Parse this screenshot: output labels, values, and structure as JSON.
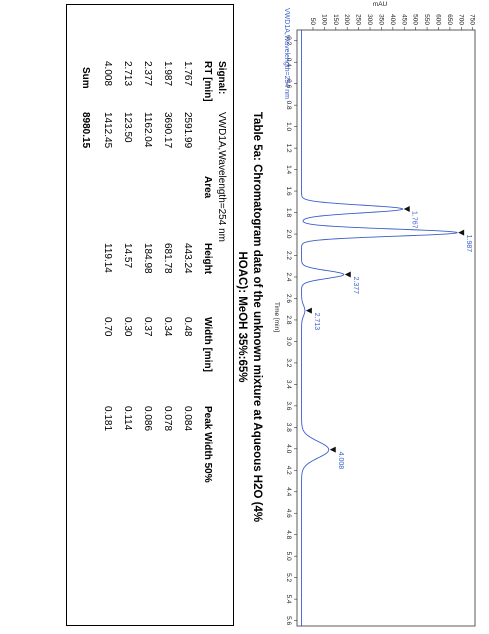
{
  "chart": {
    "y_axis_title": "mAU",
    "x_axis_title": "Time [min]",
    "legend": "VWD1A,Wavelength=254 nm",
    "x_ticks": [
      "0.2",
      "0.4",
      "0.6",
      "0.8",
      "1.0",
      "1.2",
      "1.4",
      "1.6",
      "1.8",
      "2.0",
      "2.2",
      "2.4",
      "2.6",
      "2.8",
      "3.0",
      "3.2",
      "3.4",
      "3.6",
      "3.8",
      "4.0",
      "4.2",
      "4.4",
      "4.6",
      "4.8",
      "5.0",
      "5.2",
      "5.4",
      "5.6"
    ],
    "y_ticks": [
      "50",
      "100",
      "150",
      "200",
      "250",
      "300",
      "350",
      "400",
      "450",
      "500",
      "550",
      "600",
      "650",
      "700",
      "750"
    ],
    "line_color": "#3a5fcd"
  },
  "chart_data": {
    "type": "line",
    "title": "",
    "xlabel": "Time [min]",
    "ylabel": "mAU",
    "xlim": [
      0.2,
      5.6
    ],
    "ylim": [
      0,
      750
    ],
    "series": [
      {
        "name": "VWD1A,Wavelength=254 nm"
      }
    ],
    "peaks": [
      {
        "label": "1.767",
        "rt": 1.767,
        "height": 443.24,
        "width50": 0.084
      },
      {
        "label": "1.987",
        "rt": 1.987,
        "height": 681.78,
        "width50": 0.078
      },
      {
        "label": "2.377",
        "rt": 2.377,
        "height": 184.98,
        "width50": 0.086
      },
      {
        "label": "2.713",
        "rt": 2.713,
        "height": 14.57,
        "width50": 0.114
      },
      {
        "label": "4.008",
        "rt": 4.008,
        "height": 119.14,
        "width50": 0.181
      }
    ]
  },
  "caption": {
    "line1": "Table 5a: Chromatogram data of the unknown mixture at Aqueous H2O (4%",
    "line2": "HOAC): MeOH 35%:65%"
  },
  "table": {
    "signal_label": "Signal:",
    "signal_value": "VWD1A,Wavelength=254 nm",
    "headers": [
      "RT [min]",
      "Area",
      "Height",
      "Width [min]",
      "Peak Width 50%"
    ],
    "rows": [
      [
        "1.767",
        "2591.99",
        "443.24",
        "0.48",
        "0.084"
      ],
      [
        "1.987",
        "3690.17",
        "681.78",
        "0.34",
        "0.078"
      ],
      [
        "2.377",
        "1162.04",
        "184.98",
        "0.37",
        "0.086"
      ],
      [
        "2.713",
        "123.50",
        "14.57",
        "0.30",
        "0.114"
      ],
      [
        "4.008",
        "1412.45",
        "119.14",
        "0.70",
        "0.181"
      ]
    ],
    "sum_label": "Sum",
    "sum_value": "8980.15"
  }
}
